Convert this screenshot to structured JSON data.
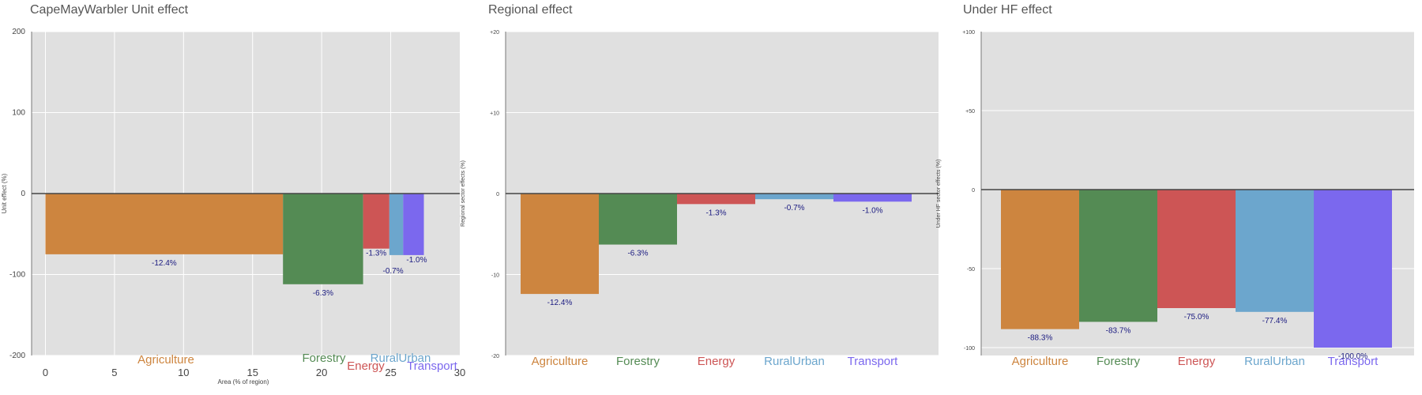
{
  "colors": {
    "panel_bg": "#e0e0e0",
    "grid": "#ffffff",
    "zero_line": "#444444",
    "value_label": "#1a1a80",
    "axis_text": "#444444",
    "Agriculture": "#cd853f",
    "Forestry": "#548b54",
    "Energy": "#cd5555",
    "RuralUrban": "#6ca6cd",
    "Transport": "#7b68ee"
  },
  "chart_data": [
    {
      "id": "unit",
      "type": "bar",
      "title": "CapeMayWarbler Unit effect",
      "ylabel": "Unit effect (%)",
      "xlabel": "Area (% of region)",
      "ylim": [
        -200,
        200
      ],
      "yticks": [
        -200,
        -100,
        0,
        100,
        200
      ],
      "ytick_labels": [
        "-200",
        "-100",
        "0",
        "100",
        "200"
      ],
      "xlim": [
        -1,
        30
      ],
      "xticks": [
        0,
        5,
        10,
        15,
        20,
        25,
        30
      ],
      "xtick_labels": [
        "0",
        "5",
        "10",
        "15",
        "20",
        "25",
        "30"
      ],
      "bars": [
        {
          "sector": "Agriculture",
          "x_start": 0,
          "x_end": 17.2,
          "value": -75,
          "label": "-12.4%"
        },
        {
          "sector": "Forestry",
          "x_start": 17.2,
          "x_end": 23.0,
          "value": -112,
          "label": "-6.3%"
        },
        {
          "sector": "Energy",
          "x_start": 23.0,
          "x_end": 24.9,
          "value": -68,
          "label": "-1.3%"
        },
        {
          "sector": "RuralUrban",
          "x_start": 24.9,
          "x_end": 25.9,
          "value": -76,
          "label": "-0.7%"
        },
        {
          "sector": "Transport",
          "x_start": 25.9,
          "x_end": 27.4,
          "value": -76,
          "label": "-1.0%"
        }
      ],
      "category_labels": [
        "Agriculture",
        "Forestry",
        "Energy",
        "RuralUrban",
        "Transport"
      ]
    },
    {
      "id": "regional",
      "type": "bar",
      "title": "Regional effect",
      "ylabel": "Regional sector effects (%)",
      "ylim": [
        -20,
        20
      ],
      "yticks": [
        -20,
        -10,
        0,
        10,
        20
      ],
      "ytick_labels": [
        "-20",
        "-10",
        "0",
        "+10",
        "+20"
      ],
      "categories": [
        "Agriculture",
        "Forestry",
        "Energy",
        "RuralUrban",
        "Transport"
      ],
      "values": [
        -12.4,
        -6.3,
        -1.3,
        -0.7,
        -1.0
      ],
      "labels": [
        "-12.4%",
        "-6.3%",
        "-1.3%",
        "-0.7%",
        "-1.0%"
      ]
    },
    {
      "id": "underhf",
      "type": "bar",
      "title": "Under HF effect",
      "ylabel": "Under HF sector effects (%)",
      "ylim": [
        -105,
        100
      ],
      "yticks": [
        -100,
        -50,
        0,
        50,
        100
      ],
      "ytick_labels": [
        "-100",
        "-50",
        "0",
        "+50",
        "+100"
      ],
      "categories": [
        "Agriculture",
        "Forestry",
        "Energy",
        "RuralUrban",
        "Transport"
      ],
      "values": [
        -88.3,
        -83.7,
        -75.0,
        -77.4,
        -100.0
      ],
      "labels": [
        "-88.3%",
        "-83.7%",
        "-75.0%",
        "-77.4%",
        "-100.0%"
      ]
    }
  ]
}
